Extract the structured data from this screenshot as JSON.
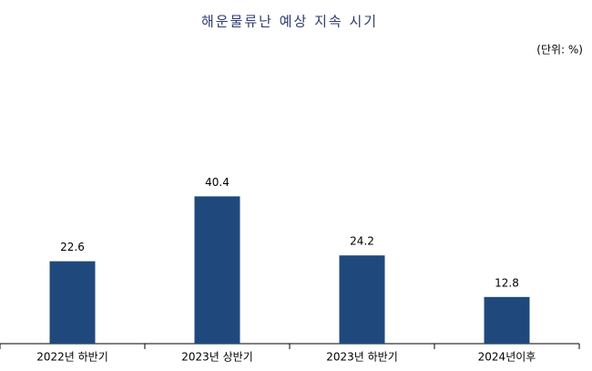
{
  "chart_data": {
    "type": "bar",
    "title": "해운물류난 예상 지속 시기",
    "unit": "(단위: %)",
    "categories": [
      "2022년 하반기",
      "2023년 상반기",
      "2023년 하반기",
      "2024년이후"
    ],
    "values": [
      22.6,
      40.4,
      24.2,
      12.8
    ],
    "color": "#1f497d"
  }
}
